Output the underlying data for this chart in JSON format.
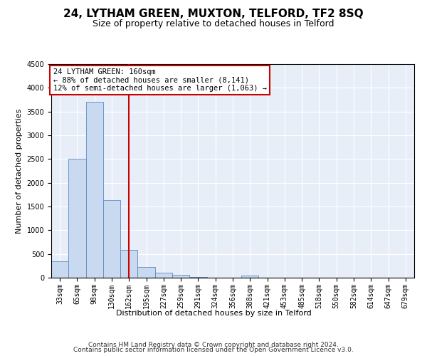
{
  "title": "24, LYTHAM GREEN, MUXTON, TELFORD, TF2 8SQ",
  "subtitle": "Size of property relative to detached houses in Telford",
  "xlabel": "Distribution of detached houses by size in Telford",
  "ylabel": "Number of detached properties",
  "categories": [
    "33sqm",
    "65sqm",
    "98sqm",
    "130sqm",
    "162sqm",
    "195sqm",
    "227sqm",
    "259sqm",
    "291sqm",
    "324sqm",
    "356sqm",
    "388sqm",
    "421sqm",
    "453sqm",
    "485sqm",
    "518sqm",
    "550sqm",
    "582sqm",
    "614sqm",
    "647sqm",
    "679sqm"
  ],
  "values": [
    350,
    2500,
    3700,
    1630,
    580,
    220,
    100,
    60,
    15,
    0,
    0,
    50,
    0,
    0,
    0,
    0,
    0,
    0,
    0,
    0,
    0
  ],
  "bar_color": "#c9d9f0",
  "bar_edge_color": "#5a8ac6",
  "vline_x_index": 4,
  "vline_color": "#cc0000",
  "ylim": [
    0,
    4500
  ],
  "yticks": [
    0,
    500,
    1000,
    1500,
    2000,
    2500,
    3000,
    3500,
    4000,
    4500
  ],
  "annotation_text": "24 LYTHAM GREEN: 160sqm\n← 88% of detached houses are smaller (8,141)\n12% of semi-detached houses are larger (1,063) →",
  "annotation_box_color": "#ffffff",
  "annotation_box_edge_color": "#cc0000",
  "footer_line1": "Contains HM Land Registry data © Crown copyright and database right 2024.",
  "footer_line2": "Contains public sector information licensed under the Open Government Licence v3.0.",
  "title_fontsize": 11,
  "subtitle_fontsize": 9,
  "axis_label_fontsize": 8,
  "tick_fontsize": 7,
  "annotation_fontsize": 7.5,
  "footer_fontsize": 6.5
}
